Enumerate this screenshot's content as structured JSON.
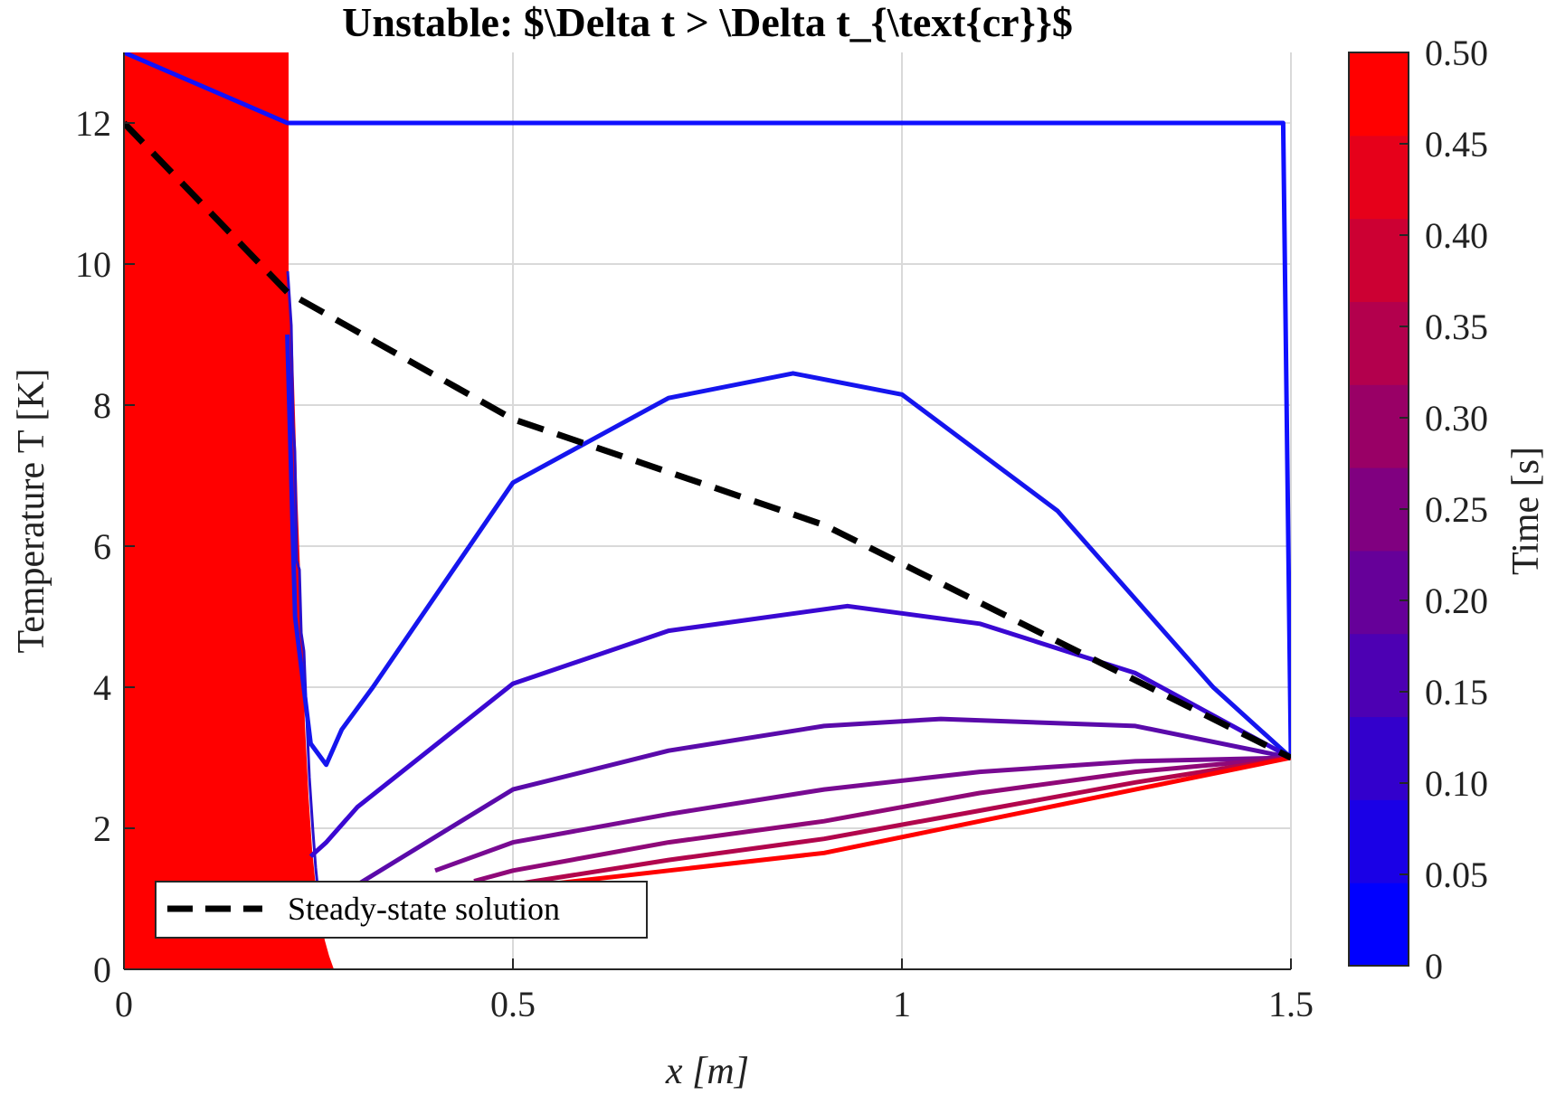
{
  "chart_data": {
    "type": "line",
    "title": "Unstable: $\\Delta t > \\Delta t_{\\text{cr}}$",
    "xlabel": "x [m]",
    "ylabel": "Temperature T [K]",
    "xlim": [
      0,
      1.5
    ],
    "ylim": [
      0,
      13
    ],
    "x_ticks": [
      "0",
      "0.5",
      "1",
      "1.5"
    ],
    "y_ticks": [
      "0",
      "2",
      "4",
      "6",
      "8",
      "10",
      "12"
    ],
    "grid": true,
    "legend": {
      "position": "bottom-left",
      "entries": [
        "Steady-state solution"
      ]
    },
    "colorbar": {
      "label": "Time [s]",
      "range": [
        0,
        0.5
      ],
      "ticks": [
        "0",
        "0.05",
        "0.10",
        "0.15",
        "0.20",
        "0.25",
        "0.30",
        "0.35",
        "0.40",
        "0.45",
        "0.50"
      ],
      "levels": [
        "#0000ff",
        "#1a00e6",
        "#3300cc",
        "#4d00b3",
        "#660099",
        "#800080",
        "#990066",
        "#b3004d",
        "#cc0033",
        "#e6001a"
      ],
      "top_color": "#ff0000"
    },
    "series": [
      {
        "name": "Steady-state solution",
        "color": "#000000",
        "style": "dashed",
        "x": [
          0,
          0.21,
          0.5,
          0.9,
          1.5
        ],
        "y": [
          12.0,
          9.6,
          7.8,
          6.3,
          3.0
        ]
      },
      {
        "time": 0.0,
        "color": "#1010ff",
        "x": [
          0,
          0.21,
          0.211,
          1.49,
          1.5
        ],
        "y": [
          13.0,
          12.0,
          12.0,
          12.0,
          3.0
        ]
      },
      {
        "time": 0.05,
        "color": "#1515ee",
        "x": [
          0.21,
          0.22,
          0.24,
          0.26,
          0.28,
          0.32,
          0.5,
          0.7,
          0.86,
          1.0,
          1.2,
          1.4,
          1.5
        ],
        "y": [
          9.0,
          5.0,
          3.2,
          2.9,
          3.4,
          4.0,
          6.9,
          8.1,
          8.45,
          8.15,
          6.5,
          4.0,
          3.0
        ]
      },
      {
        "time": 0.1,
        "color": "#3a08d2",
        "x": [
          0.24,
          0.26,
          0.3,
          0.5,
          0.7,
          0.93,
          1.1,
          1.3,
          1.5
        ],
        "y": [
          1.6,
          1.8,
          2.3,
          4.05,
          4.8,
          5.15,
          4.9,
          4.2,
          3.0
        ]
      },
      {
        "time": 0.15,
        "color": "#5a0aaa",
        "x": [
          0.3,
          0.5,
          0.7,
          0.9,
          1.05,
          1.3,
          1.5
        ],
        "y": [
          1.2,
          2.55,
          3.1,
          3.45,
          3.55,
          3.45,
          3.0
        ]
      },
      {
        "time": 0.2,
        "color": "#780a92",
        "x": [
          0.4,
          0.5,
          0.7,
          0.9,
          1.1,
          1.3,
          1.5
        ],
        "y": [
          1.4,
          1.8,
          2.2,
          2.55,
          2.8,
          2.95,
          3.0
        ]
      },
      {
        "time": 0.25,
        "color": "#8f0878",
        "x": [
          0.45,
          0.5,
          0.7,
          0.9,
          1.1,
          1.3,
          1.5
        ],
        "y": [
          1.25,
          1.4,
          1.8,
          2.1,
          2.5,
          2.8,
          3.0
        ]
      },
      {
        "time": 0.3,
        "color": "#b2064c",
        "x": [
          0.5,
          0.7,
          0.9,
          1.1,
          1.3,
          1.5
        ],
        "y": [
          1.2,
          1.55,
          1.85,
          2.25,
          2.65,
          3.0
        ]
      },
      {
        "time": 0.5,
        "color": "#ff0000",
        "x": [
          0.42,
          0.5,
          0.7,
          0.9,
          1.1,
          1.3,
          1.5
        ],
        "y": [
          1.05,
          1.15,
          1.4,
          1.65,
          2.1,
          2.55,
          3.0
        ]
      }
    ]
  }
}
